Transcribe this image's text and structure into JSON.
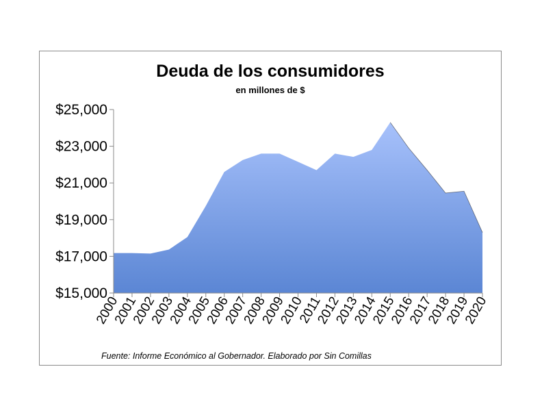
{
  "chart_data": {
    "type": "area",
    "title": "Deuda de los consumidores",
    "subtitle": "en millones de $",
    "xlabel": "",
    "ylabel": "",
    "categories": [
      "2000",
      "2001",
      "2002",
      "2003",
      "2004",
      "2005",
      "2006",
      "2007",
      "2008",
      "2009",
      "2010",
      "2011",
      "2012",
      "2013",
      "2014",
      "2015",
      "2016",
      "2017",
      "2018",
      "2019",
      "2020"
    ],
    "values": [
      17180,
      17180,
      17150,
      17370,
      18050,
      19750,
      21600,
      22250,
      22600,
      22600,
      22150,
      21700,
      22600,
      22420,
      22800,
      24300,
      22900,
      21700,
      20450,
      20550,
      18300
    ],
    "ylim": [
      15000,
      25000
    ],
    "yticks": [
      15000,
      17000,
      19000,
      21000,
      23000,
      25000
    ],
    "ytick_labels": [
      "$15,000",
      "$17,000",
      "$19,000",
      "$21,000",
      "$23,000",
      "$25,000"
    ],
    "grid": false,
    "legend": "none",
    "source": "Fuente: Informe Económico al Gobernador.  Elaborado por Sin Comillas",
    "colors": {
      "fill_top": "#a7c1fb",
      "fill_bottom": "#5b86d4",
      "axis": "#8a8a8a",
      "border": "#8a8a8a"
    }
  }
}
